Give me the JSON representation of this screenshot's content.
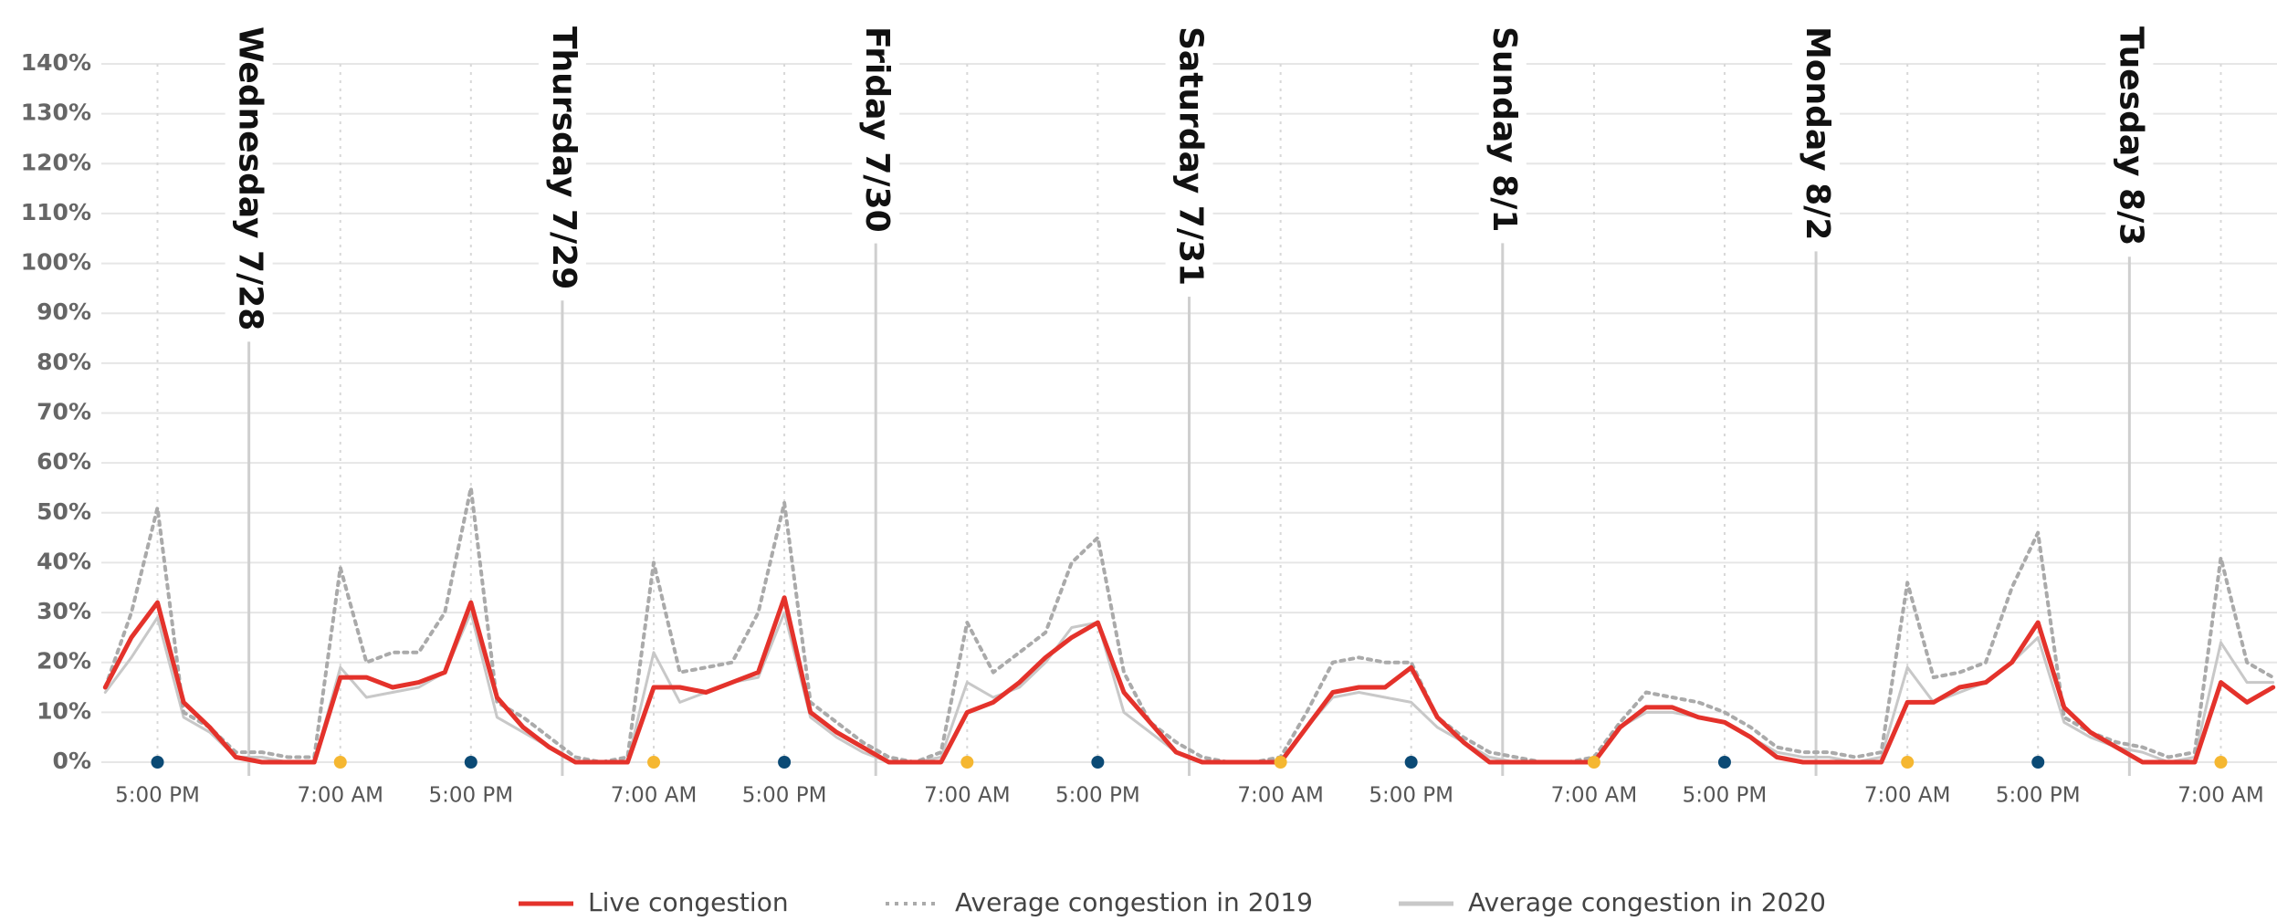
{
  "chart_data": {
    "type": "line",
    "x": [
      13,
      15,
      17,
      19,
      21,
      23,
      25,
      27,
      29,
      31,
      33,
      35,
      37,
      39,
      41,
      43,
      45,
      47,
      49,
      51,
      53,
      55,
      57,
      59,
      61,
      63,
      65,
      67,
      69,
      71,
      73,
      75,
      77,
      79,
      81,
      83,
      85,
      87,
      89,
      91,
      93,
      95,
      97,
      99,
      101,
      103,
      105,
      107,
      109,
      111,
      113,
      115,
      117,
      119,
      121,
      123,
      125,
      127,
      129,
      131,
      133,
      135,
      137,
      139,
      141,
      143,
      145,
      147,
      149,
      151,
      153,
      155,
      157,
      159,
      161,
      163,
      165,
      167,
      169,
      171,
      173,
      175,
      177,
      179
    ],
    "series": [
      {
        "name": "Live congestion",
        "color": "#e4322b",
        "line_style": "solid",
        "values": [
          15,
          25,
          32,
          12,
          7,
          1,
          0,
          0,
          0,
          17,
          17,
          15,
          16,
          18,
          32,
          13,
          7,
          3,
          0,
          0,
          0,
          15,
          15,
          14,
          16,
          18,
          33,
          10,
          6,
          3,
          0,
          0,
          0,
          10,
          12,
          16,
          21,
          25,
          28,
          14,
          8,
          2,
          0,
          0,
          0,
          0,
          7,
          14,
          15,
          15,
          19,
          9,
          4,
          0,
          0,
          0,
          0,
          0,
          7,
          11,
          11,
          9,
          8,
          5,
          1,
          0,
          0,
          0,
          0,
          12,
          12,
          15,
          16,
          20,
          28,
          11,
          6,
          3,
          0,
          0,
          0,
          16,
          12,
          15
        ]
      },
      {
        "name": "Average congestion in 2019",
        "color": "#aaaaaa",
        "line_style": "dotted",
        "values": [
          15,
          30,
          51,
          10,
          7,
          2,
          2,
          1,
          1,
          39,
          20,
          22,
          22,
          30,
          55,
          12,
          9,
          5,
          1,
          0,
          1,
          40,
          18,
          19,
          20,
          30,
          52,
          12,
          8,
          4,
          1,
          0,
          2,
          28,
          18,
          22,
          26,
          40,
          45,
          18,
          8,
          4,
          1,
          0,
          0,
          1,
          10,
          20,
          21,
          20,
          20,
          9,
          5,
          2,
          1,
          0,
          0,
          1,
          8,
          14,
          13,
          12,
          10,
          7,
          3,
          2,
          2,
          1,
          2,
          36,
          17,
          18,
          20,
          35,
          46,
          9,
          6,
          4,
          3,
          1,
          2,
          41,
          20,
          17
        ]
      },
      {
        "name": "Average congestion in 2020",
        "color": "#c8c8c8",
        "line_style": "solid",
        "values": [
          14,
          21,
          29,
          9,
          6,
          1,
          1,
          0,
          0,
          19,
          13,
          14,
          15,
          18,
          30,
          9,
          6,
          3,
          0,
          0,
          0,
          22,
          12,
          14,
          16,
          17,
          30,
          9,
          5,
          2,
          0,
          0,
          1,
          16,
          13,
          15,
          20,
          27,
          28,
          10,
          6,
          2,
          0,
          0,
          0,
          0,
          7,
          13,
          14,
          13,
          12,
          7,
          4,
          1,
          0,
          0,
          0,
          0,
          7,
          10,
          10,
          9,
          8,
          5,
          2,
          1,
          1,
          0,
          1,
          19,
          12,
          14,
          16,
          20,
          25,
          8,
          5,
          3,
          2,
          0,
          1,
          24,
          16,
          16
        ]
      }
    ],
    "xlim": [
      12.7,
      179.3
    ],
    "xticks": [
      {
        "value": 17,
        "label": "5:00 PM",
        "color": "#0b4a75"
      },
      {
        "value": 31,
        "label": "7:00 AM",
        "color": "#f5b731"
      },
      {
        "value": 41,
        "label": "5:00 PM",
        "color": "#0b4a75"
      },
      {
        "value": 55,
        "label": "7:00 AM",
        "color": "#f5b731"
      },
      {
        "value": 65,
        "label": "5:00 PM",
        "color": "#0b4a75"
      },
      {
        "value": 79,
        "label": "7:00 AM",
        "color": "#f5b731"
      },
      {
        "value": 89,
        "label": "5:00 PM",
        "color": "#0b4a75"
      },
      {
        "value": 103,
        "label": "7:00 AM",
        "color": "#f5b731"
      },
      {
        "value": 113,
        "label": "5:00 PM",
        "color": "#0b4a75"
      },
      {
        "value": 127,
        "label": "7:00 AM",
        "color": "#f5b731"
      },
      {
        "value": 137,
        "label": "5:00 PM",
        "color": "#0b4a75"
      },
      {
        "value": 151,
        "label": "7:00 AM",
        "color": "#f5b731"
      },
      {
        "value": 161,
        "label": "5:00 PM",
        "color": "#0b4a75"
      },
      {
        "value": 175,
        "label": "7:00 AM",
        "color": "#f5b731"
      }
    ],
    "ylim": [
      0,
      140
    ],
    "yticks": [
      {
        "value": 0,
        "label": "0%"
      },
      {
        "value": 10,
        "label": "10%"
      },
      {
        "value": 20,
        "label": "20%"
      },
      {
        "value": 30,
        "label": "30%"
      },
      {
        "value": 40,
        "label": "40%"
      },
      {
        "value": 50,
        "label": "50%"
      },
      {
        "value": 60,
        "label": "60%"
      },
      {
        "value": 70,
        "label": "70%"
      },
      {
        "value": 80,
        "label": "80%"
      },
      {
        "value": 90,
        "label": "90%"
      },
      {
        "value": 100,
        "label": "100%"
      },
      {
        "value": 110,
        "label": "110%"
      },
      {
        "value": 120,
        "label": "120%"
      },
      {
        "value": 130,
        "label": "130%"
      },
      {
        "value": 140,
        "label": "140%"
      }
    ],
    "grid": true,
    "legend": "bottom",
    "annotations": [
      {
        "label": "Wednesday 7/28",
        "x": 24
      },
      {
        "label": "Thursday 7/29",
        "x": 48
      },
      {
        "label": "Friday 7/30",
        "x": 72
      },
      {
        "label": "Saturday 7/31",
        "x": 96
      },
      {
        "label": "Sunday 8/1",
        "x": 120
      },
      {
        "label": "Monday 8/2",
        "x": 144
      },
      {
        "label": "Tuesday 8/3",
        "x": 168
      }
    ]
  }
}
